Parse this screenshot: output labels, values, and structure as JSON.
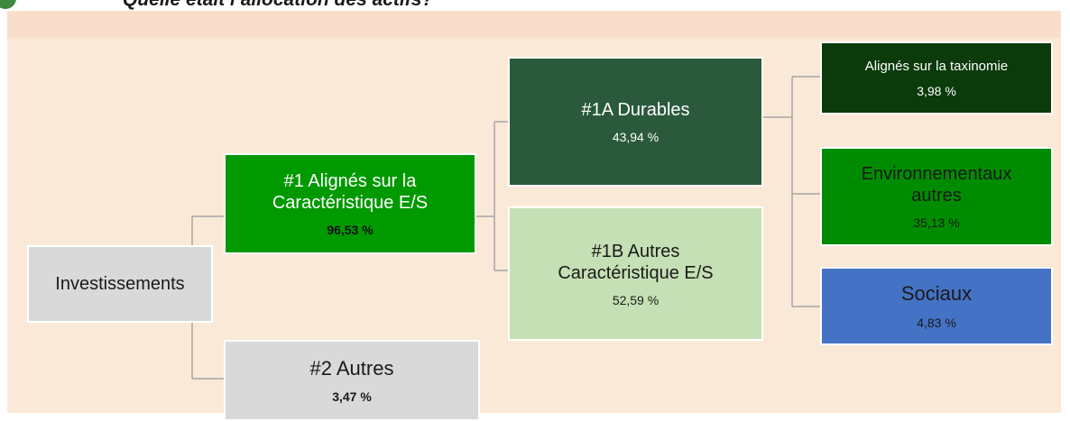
{
  "title": "Quelle était l’allocation des actifs?",
  "nodes": [
    {
      "label": [
        "Investissements"
      ],
      "value": null
    },
    {
      "label": [
        "#1 Alignés sur la",
        "Caractéristique E/S"
      ],
      "value": "96,53 %"
    },
    {
      "label": [
        "#2 Autres"
      ],
      "value": "3,47 %"
    },
    {
      "label": [
        "#1A Durables"
      ],
      "value": "43,94 %"
    },
    {
      "label": [
        "#1B Autres",
        "Caractéristique E/S"
      ],
      "value": "52,59 %"
    },
    {
      "label": [
        "Alignés sur la taxinomie"
      ],
      "value": "3,98 %"
    },
    {
      "label": [
        "Environnementaux",
        "autres"
      ],
      "value": "35,13 %"
    },
    {
      "label": [
        "Sociaux"
      ],
      "value": "4,83 %"
    }
  ]
}
